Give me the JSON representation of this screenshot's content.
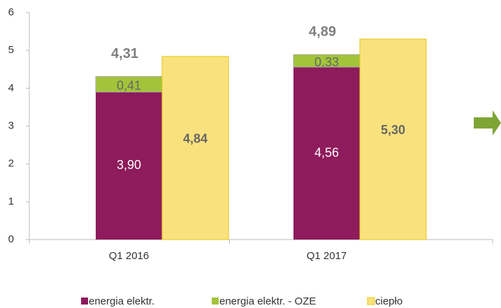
{
  "chart_data": {
    "type": "bar",
    "categories": [
      "Q1 2016",
      "Q1 2017"
    ],
    "series": [
      {
        "name": "energia elektr.",
        "color": "#8e1b5c",
        "values": [
          3.9,
          4.56
        ],
        "value_labels": [
          "3,90",
          "4,56"
        ]
      },
      {
        "name": "energia elektr. - OZE",
        "color": "#a3c43a",
        "values": [
          0.41,
          0.33
        ],
        "value_labels": [
          "0,41",
          "0,33"
        ]
      },
      {
        "name": "ciepło",
        "color": "#f9e27d",
        "values": [
          4.84,
          5.3
        ],
        "value_labels": [
          "4,84",
          "5,30"
        ]
      }
    ],
    "stack_totals": [
      4.31,
      4.89
    ],
    "stack_total_labels": [
      "4,31",
      "4,89"
    ],
    "ylim": [
      0,
      6
    ],
    "yticks": [
      0,
      1,
      2,
      3,
      4,
      5,
      6
    ],
    "grid": false,
    "legend": "bottom"
  }
}
